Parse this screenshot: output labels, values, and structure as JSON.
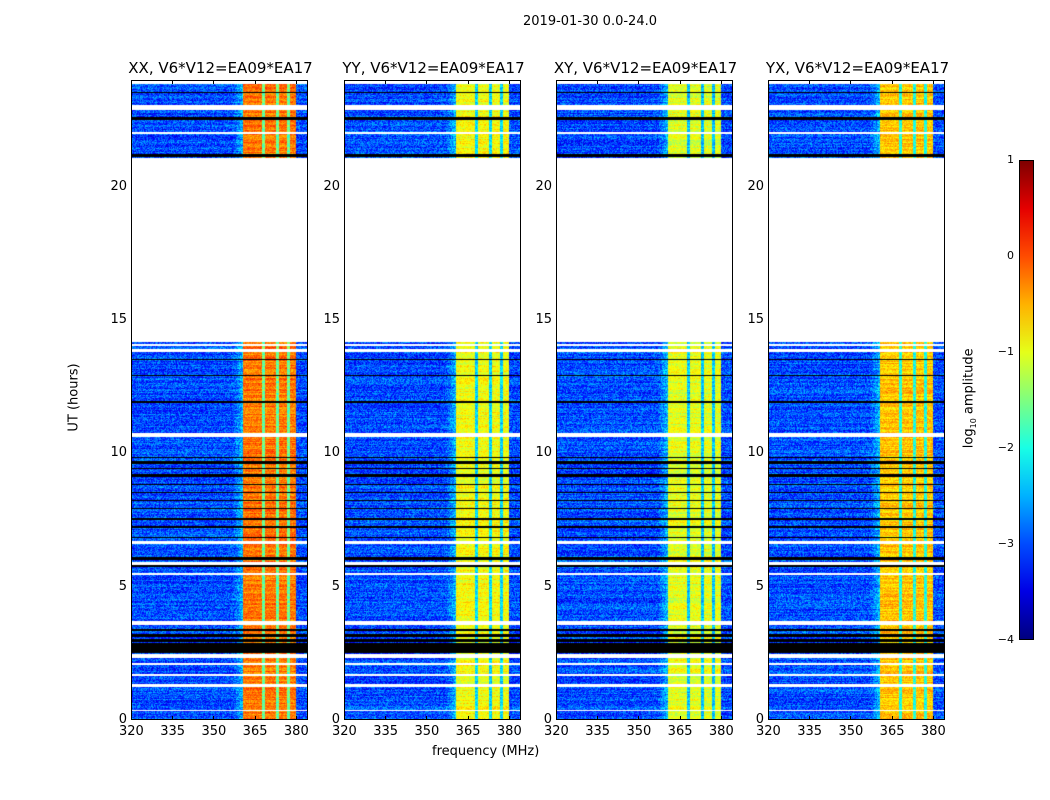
{
  "chart_data": {
    "type": "heatmap",
    "title": "2019-01-30 0.0-24.0",
    "xlabel": "frequency (MHz)",
    "ylabel": "UT (hours)",
    "xlim": [
      320,
      384.4
    ],
    "ylim": [
      0,
      24
    ],
    "xticks": [
      320,
      335,
      350,
      365,
      380
    ],
    "yticks": [
      0,
      5,
      10,
      15,
      20
    ],
    "panels": [
      {
        "title": "XX, V6*V12=EA09*EA17",
        "band_level": -0.2
      },
      {
        "title": "YY, V6*V12=EA09*EA17",
        "band_level": -0.9
      },
      {
        "title": "XY, V6*V12=EA09*EA17",
        "band_level": -1.0
      },
      {
        "title": "YX, V6*V12=EA09*EA17",
        "band_level": -0.6
      }
    ],
    "background_level": -3.0,
    "bright_band_mhz": [
      361,
      380.4
    ],
    "band_dips_mhz": [
      368.5,
      373.5,
      377.5
    ],
    "valid_hours": [
      [
        0,
        0.3
      ],
      [
        0.35,
        1.2
      ],
      [
        1.3,
        1.6
      ],
      [
        1.68,
        2.05
      ],
      [
        2.1,
        2.3
      ],
      [
        2.45,
        3.55
      ],
      [
        3.7,
        5.4
      ],
      [
        5.5,
        5.8
      ],
      [
        5.9,
        6.6
      ],
      [
        6.7,
        10.6
      ],
      [
        10.75,
        13.8
      ],
      [
        13.9,
        14.05
      ],
      [
        14.1,
        14.2
      ],
      [
        21.1,
        22.0
      ],
      [
        22.1,
        22.9
      ],
      [
        23.1,
        23.9
      ]
    ],
    "flagged_hours": [
      [
        2.5,
        2.85
      ],
      [
        2.9,
        3.0
      ],
      [
        3.1,
        3.2
      ],
      [
        3.3,
        3.4
      ],
      [
        5.7,
        5.8
      ],
      [
        6.0,
        6.1
      ],
      [
        6.8,
        6.85
      ],
      [
        7.2,
        7.25
      ],
      [
        7.5,
        7.55
      ],
      [
        7.9,
        7.95
      ],
      [
        8.2,
        8.25
      ],
      [
        8.5,
        8.55
      ],
      [
        8.8,
        8.85
      ],
      [
        9.1,
        9.2
      ],
      [
        9.4,
        9.45
      ],
      [
        9.6,
        9.7
      ],
      [
        9.8,
        9.85
      ],
      [
        11.9,
        11.95
      ],
      [
        12.9,
        12.95
      ],
      [
        13.5,
        13.55
      ],
      [
        13.8,
        13.9
      ],
      [
        21.15,
        21.25
      ],
      [
        22.55,
        22.65
      ],
      [
        23.0,
        23.1
      ],
      [
        23.55,
        23.6
      ]
    ],
    "colorbar": {
      "label": "log10 amplitude",
      "label_main": "log",
      "label_sub": "10",
      "label_rest": " amplitude",
      "range": [
        -4,
        1
      ],
      "ticks": [
        "1",
        "0",
        "−1",
        "−2",
        "−3",
        "−4"
      ],
      "colormap": "jet"
    }
  }
}
